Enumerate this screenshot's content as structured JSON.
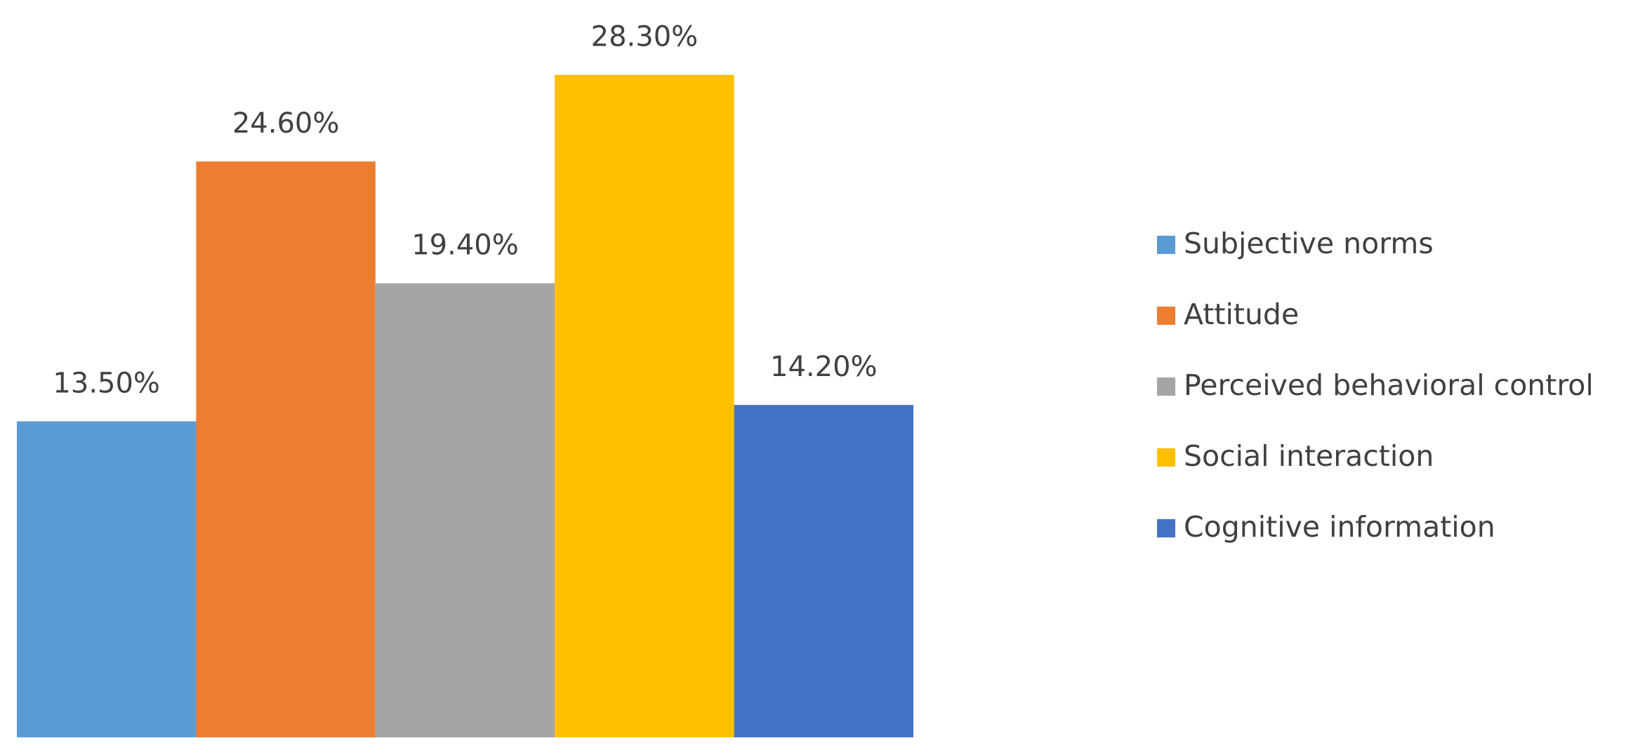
{
  "chart_data": {
    "type": "bar",
    "categories": [
      null
    ],
    "series": [
      {
        "name": "Subjective norms",
        "color": "#5b9bd5",
        "values": [
          13.5
        ],
        "value_labels": [
          "13.50%"
        ]
      },
      {
        "name": "Attitude",
        "color": "#ed7d31",
        "values": [
          24.6
        ],
        "value_labels": [
          "24.60%"
        ]
      },
      {
        "name": "Perceived behavioral control",
        "color": "#a5a5a5",
        "values": [
          19.4
        ],
        "value_labels": [
          "19.40%"
        ]
      },
      {
        "name": "Social interaction",
        "color": "#ffc000",
        "values": [
          28.3
        ],
        "value_labels": [
          "28.30%"
        ]
      },
      {
        "name": "Cognitive information",
        "color": "#4472c4",
        "values": [
          14.2
        ],
        "value_labels": [
          "14.20%"
        ]
      }
    ],
    "ylim": [
      0,
      30
    ],
    "grid": false,
    "legend": "right"
  }
}
